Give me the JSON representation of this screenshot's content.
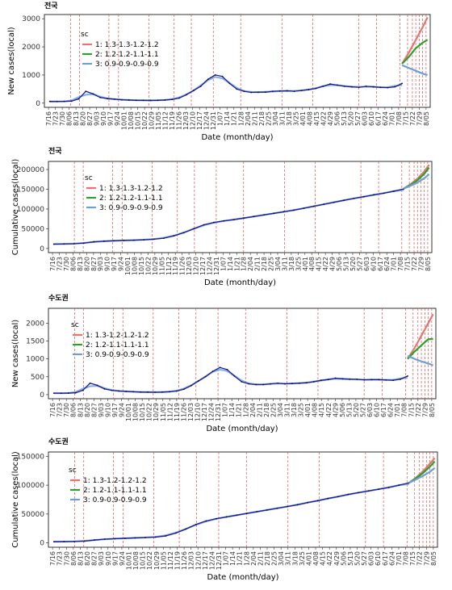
{
  "chart_data": [
    {
      "type": "line",
      "panel_title": "전국",
      "xlabel": "Date (month/day)",
      "ylabel": "New cases(local)",
      "ylim": [
        0,
        3000
      ],
      "yticks": [
        0,
        1000,
        2000,
        3000
      ],
      "x_ticks": [
        "7/16",
        "7/23",
        "7/30",
        "8/06",
        "8/13",
        "8/20",
        "8/27",
        "9/03",
        "9/10",
        "9/17",
        "9/24",
        "10/01",
        "10/08",
        "10/15",
        "10/22",
        "10/29",
        "11/05",
        "11/12",
        "11/19",
        "11/26",
        "12/03",
        "12/10",
        "12/17",
        "12/24",
        "12/31",
        "1/07",
        "1/14",
        "1/21",
        "1/28",
        "2/04",
        "2/11",
        "2/18",
        "2/25",
        "3/04",
        "3/11",
        "3/18",
        "3/25",
        "4/01",
        "4/08",
        "4/15",
        "4/22",
        "4/29",
        "5/06",
        "5/13",
        "5/20",
        "5/27",
        "6/03",
        "6/10",
        "6/17",
        "6/24",
        "7/01",
        "7/08",
        "7/15",
        "7/22",
        "7/29",
        "8/05"
      ],
      "vlines": [
        3.2,
        4.5,
        8.8,
        10.2,
        14.6,
        18.3,
        20.8,
        24.0,
        28.0,
        34.0,
        38.5,
        45.2,
        47.8,
        51.2,
        52.3,
        53.0,
        53.5,
        54.0,
        54.5,
        55.0
      ],
      "observed": [
        60,
        58,
        62,
        70,
        150,
        420,
        330,
        200,
        160,
        140,
        120,
        110,
        100,
        100,
        95,
        100,
        110,
        130,
        180,
        300,
        450,
        600,
        850,
        1000,
        950,
        700,
        500,
        420,
        380,
        390,
        390,
        420,
        430,
        440,
        420,
        450,
        480,
        520,
        600,
        680,
        640,
        600,
        580,
        560,
        600,
        580,
        560,
        550,
        580,
        700
      ],
      "legend_title": "sc",
      "series": [
        {
          "name": "1: 1.3-1.3-1.2-1.2",
          "color": "#e8736f",
          "x": [
            51.5,
            52.5,
            53.5,
            54.5,
            55.2
          ],
          "values": [
            1400,
            1800,
            2250,
            2700,
            3050
          ]
        },
        {
          "name": "2: 1.2-1.2-1.1-1.1",
          "color": "#2ca02c",
          "x": [
            51.5,
            52.5,
            53.5,
            54.5,
            55.2
          ],
          "values": [
            1400,
            1650,
            1950,
            2150,
            2250
          ]
        },
        {
          "name": "3: 0.9-0.9-0.9-0.9",
          "color": "#6a9fd8",
          "x": [
            51.5,
            52.5,
            53.5,
            54.5,
            55.2
          ],
          "values": [
            1350,
            1250,
            1150,
            1050,
            1000
          ]
        }
      ]
    },
    {
      "type": "line",
      "panel_title": "전국",
      "xlabel": "Date (month/day)",
      "ylabel": "Cumulative cases(local)",
      "ylim": [
        0,
        210000
      ],
      "yticks": [
        0,
        50000,
        100000,
        150000,
        200000
      ],
      "x_ticks": [
        "7/16",
        "7/23",
        "7/30",
        "8/06",
        "8/13",
        "8/20",
        "8/27",
        "9/03",
        "9/10",
        "9/17",
        "9/24",
        "10/01",
        "10/08",
        "10/15",
        "10/22",
        "10/29",
        "11/05",
        "11/12",
        "11/19",
        "11/26",
        "12/03",
        "12/10",
        "12/17",
        "12/24",
        "12/31",
        "1/07",
        "1/14",
        "1/21",
        "1/28",
        "2/04",
        "2/11",
        "2/18",
        "2/25",
        "3/04",
        "3/11",
        "3/18",
        "3/25",
        "4/01",
        "4/08",
        "4/15",
        "4/22",
        "4/29",
        "5/06",
        "5/13",
        "5/20",
        "5/27",
        "6/03",
        "6/10",
        "6/17",
        "6/24",
        "7/01",
        "7/08",
        "7/15",
        "7/22",
        "7/29",
        "8/05"
      ],
      "vlines": [
        3.2,
        4.5,
        8.8,
        10.2,
        14.6,
        18.3,
        20.8,
        24.0,
        28.0,
        34.0,
        38.5,
        45.2,
        47.8,
        51.2,
        52.3,
        53.0,
        53.5,
        54.0,
        54.5,
        55.0
      ],
      "observed": [
        11000,
        11500,
        12000,
        13500,
        17000,
        18500,
        19500,
        20500,
        21000,
        22000,
        23500,
        26000,
        32000,
        40000,
        50000,
        60000,
        66000,
        70000,
        73000,
        77000,
        81000,
        85000,
        89000,
        93000,
        97000,
        102000,
        107000,
        112000,
        117000,
        122000,
        127000,
        131000,
        136000,
        140000,
        145000,
        151000
      ],
      "legend_title": "sc",
      "series": [
        {
          "name": "1: 1.3-1.3-1.2-1.2",
          "color": "#e8736f",
          "x": [
            51.5,
            52.5,
            53.5,
            54.5,
            55.2
          ],
          "values": [
            152000,
            163000,
            177000,
            195000,
            212000
          ]
        },
        {
          "name": "2: 1.2-1.2-1.1-1.1",
          "color": "#2ca02c",
          "x": [
            51.5,
            52.5,
            53.5,
            54.5,
            55.2
          ],
          "values": [
            152000,
            161000,
            173000,
            189000,
            205000
          ]
        },
        {
          "name": "3: 0.9-0.9-0.9-0.9",
          "color": "#6a9fd8",
          "x": [
            51.5,
            52.5,
            53.5,
            54.5,
            55.2
          ],
          "values": [
            152000,
            159000,
            167000,
            178000,
            188000
          ]
        }
      ]
    },
    {
      "type": "line",
      "panel_title": "수도권",
      "xlabel": "Date (month/day)",
      "ylabel": "New cases(local)",
      "ylim": [
        0,
        2300
      ],
      "yticks": [
        0,
        500,
        1000,
        1500,
        2000
      ],
      "x_ticks": [
        "7/16",
        "7/23",
        "7/30",
        "8/06",
        "8/13",
        "8/20",
        "8/27",
        "9/03",
        "9/10",
        "9/17",
        "9/24",
        "10/01",
        "10/08",
        "10/15",
        "10/22",
        "10/29",
        "11/05",
        "11/12",
        "11/19",
        "11/26",
        "12/03",
        "12/10",
        "12/17",
        "12/24",
        "12/31",
        "1/07",
        "1/14",
        "1/21",
        "1/28",
        "2/04",
        "2/11",
        "2/18",
        "2/25",
        "3/04",
        "3/11",
        "3/18",
        "3/25",
        "4/01",
        "4/08",
        "4/15",
        "4/22",
        "4/29",
        "5/06",
        "5/13",
        "5/20",
        "5/27",
        "6/03",
        "6/10",
        "6/17",
        "6/24",
        "7/01",
        "7/08",
        "7/15",
        "7/22",
        "7/29",
        "8/05"
      ],
      "vlines": [
        3.2,
        4.5,
        8.8,
        10.2,
        14.6,
        18.3,
        20.8,
        24.0,
        28.0,
        34.0,
        38.5,
        45.2,
        47.8,
        51.2,
        52.3,
        53.0,
        53.5,
        54.0,
        54.5,
        55.0
      ],
      "observed": [
        40,
        38,
        42,
        50,
        120,
        320,
        260,
        160,
        120,
        100,
        90,
        80,
        70,
        70,
        65,
        70,
        80,
        100,
        150,
        250,
        380,
        500,
        650,
        760,
        700,
        520,
        360,
        300,
        280,
        280,
        300,
        320,
        300,
        310,
        320,
        330,
        360,
        400,
        420,
        460,
        440,
        430,
        430,
        410,
        420,
        420,
        410,
        400,
        430,
        520
      ],
      "legend_title": "sc",
      "series": [
        {
          "name": "1: 1.3-1.2-1.2-1.2",
          "color": "#e8736f",
          "x": [
            51.5,
            52.5,
            53.5,
            54.5,
            55.2
          ],
          "values": [
            1000,
            1300,
            1650,
            2000,
            2250
          ]
        },
        {
          "name": "2: 1.2-1.1-1.1-1.1",
          "color": "#2ca02c",
          "x": [
            51.5,
            52.5,
            53.5,
            54.5,
            55.2
          ],
          "values": [
            1000,
            1200,
            1380,
            1550,
            1560
          ]
        },
        {
          "name": "3: 0.9-0.9-0.9-0.9",
          "color": "#6a9fd8",
          "x": [
            51.5,
            52.5,
            53.5,
            54.5,
            55.2
          ],
          "values": [
            1080,
            1000,
            930,
            870,
            820
          ]
        }
      ]
    },
    {
      "type": "line",
      "panel_title": "수도권",
      "xlabel": "Date (month/day)",
      "ylabel": "Cumulative cases(local)",
      "ylim": [
        0,
        150000
      ],
      "yticks": [
        0,
        50000,
        100000,
        150000
      ],
      "x_ticks": [
        "7/16",
        "7/23",
        "7/30",
        "8/06",
        "8/13",
        "8/20",
        "8/27",
        "9/03",
        "9/10",
        "9/17",
        "9/24",
        "10/01",
        "10/08",
        "10/15",
        "10/22",
        "10/29",
        "11/05",
        "11/12",
        "11/19",
        "11/26",
        "12/03",
        "12/10",
        "12/17",
        "12/24",
        "12/31",
        "1/07",
        "1/14",
        "1/21",
        "1/28",
        "2/04",
        "2/11",
        "2/18",
        "2/25",
        "3/04",
        "3/11",
        "3/18",
        "3/25",
        "4/01",
        "4/08",
        "4/15",
        "4/22",
        "4/29",
        "5/06",
        "5/13",
        "5/20",
        "5/27",
        "6/03",
        "6/10",
        "6/17",
        "6/24",
        "7/01",
        "7/08",
        "7/15",
        "7/22",
        "7/29",
        "8/05"
      ],
      "vlines": [
        3.2,
        4.5,
        8.8,
        10.2,
        14.6,
        18.3,
        20.8,
        24.0,
        28.0,
        34.0,
        38.5,
        45.2,
        47.8,
        51.2,
        52.3,
        53.0,
        53.5,
        54.0,
        54.5,
        55.0
      ],
      "observed": [
        2000,
        2200,
        2500,
        3000,
        5000,
        6500,
        7300,
        8000,
        8700,
        9300,
        10000,
        12000,
        17000,
        24000,
        32000,
        38000,
        42000,
        45000,
        48000,
        51000,
        54000,
        57000,
        60000,
        63000,
        66000,
        70000,
        73000,
        77000,
        80000,
        84000,
        87000,
        90000,
        93000,
        96000,
        100000,
        104000
      ],
      "legend_title": "sc",
      "series": [
        {
          "name": "1: 1.3-1.2-1.2-1.2",
          "color": "#e8736f",
          "x": [
            51.5,
            52.5,
            53.5,
            54.5,
            55.2
          ],
          "values": [
            104000,
            113000,
            124000,
            137000,
            147000
          ]
        },
        {
          "name": "2: 1.2-1.1-1.1-1.1",
          "color": "#2ca02c",
          "x": [
            51.5,
            52.5,
            53.5,
            54.5,
            55.2
          ],
          "values": [
            104000,
            112000,
            121000,
            132000,
            141000
          ]
        },
        {
          "name": "3: 0.9-0.9-0.9-0.9",
          "color": "#6a9fd8",
          "x": [
            51.5,
            52.5,
            53.5,
            54.5,
            55.2
          ],
          "values": [
            104000,
            110000,
            116000,
            123000,
            130000
          ]
        }
      ]
    }
  ]
}
